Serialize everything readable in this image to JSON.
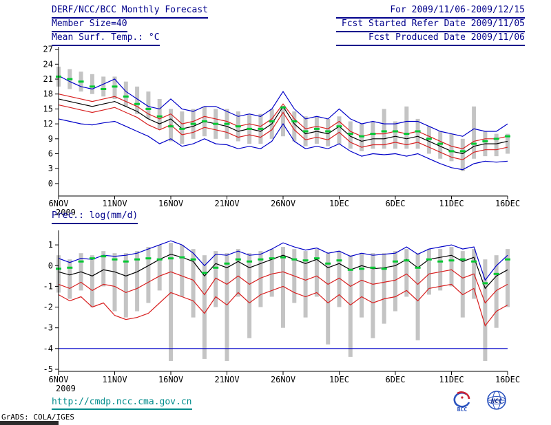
{
  "header": {
    "title": "DERF/NCC/BCC Monthly Forecast",
    "date_range": "For 2009/11/06-2009/12/15",
    "member_size": "Member Size=40",
    "fcst_refer": "Fcst Started Refer Date 2009/11/05",
    "fcst_produced": "Fcst Produced Date 2009/11/06"
  },
  "footer": {
    "url": "http://cmdp.ncc.cma.gov.cn",
    "grads_credit": "GrADS: COLA/IGES",
    "logos": [
      "bcc-logo",
      "ncc-logo"
    ]
  },
  "colors": {
    "header_text": "#00008b",
    "url_text": "#008b8b",
    "axis_text": "#000000",
    "bar_gray": "#c4c4c4",
    "line_blue": "#0000c8",
    "line_red": "#d82020",
    "line_black": "#000000",
    "dash_green": "#00c832"
  },
  "chart_data": [
    {
      "type": "line",
      "name": "surface-temperature-forecast",
      "title": "Mean Surf. Temp.: °C",
      "x_tick_labels": [
        "6NOV",
        "11NOV",
        "16NOV",
        "21NOV",
        "26NOV",
        "1DEC",
        "6DEC",
        "11DEC",
        "16DEC"
      ],
      "x_tick_step": 5,
      "x_year_label": "2009",
      "n_points": 41,
      "ylim": [
        -2.5,
        27.5
      ],
      "yticks": [
        0,
        3,
        6,
        9,
        12,
        15,
        18,
        21,
        24,
        27
      ],
      "series": [
        {
          "name": "member-spread-bar",
          "type": "bar",
          "color": "#c4c4c4",
          "low": [
            19.5,
            19.0,
            18.5,
            18.0,
            17.5,
            17.0,
            15.5,
            14.0,
            13.0,
            11.0,
            8.5,
            8.0,
            9.0,
            9.5,
            9.0,
            9.0,
            8.5,
            8.0,
            8.0,
            9.0,
            9.5,
            8.5,
            7.5,
            8.0,
            7.5,
            8.0,
            7.0,
            6.5,
            7.0,
            7.0,
            7.0,
            7.0,
            7.0,
            6.0,
            5.0,
            4.5,
            2.5,
            5.0,
            5.5,
            5.5,
            6.0
          ],
          "high": [
            23.5,
            23.0,
            22.5,
            22.0,
            21.5,
            21.5,
            20.5,
            19.5,
            18.5,
            17.0,
            15.0,
            14.5,
            15.0,
            15.5,
            15.0,
            15.0,
            14.5,
            14.0,
            14.0,
            15.0,
            15.5,
            14.5,
            13.5,
            13.5,
            13.0,
            13.5,
            12.5,
            12.0,
            12.5,
            15.0,
            12.5,
            15.5,
            13.0,
            11.5,
            10.5,
            10.0,
            9.0,
            15.5,
            10.5,
            10.0,
            10.0
          ]
        },
        {
          "name": "ensemble-max",
          "type": "line",
          "color": "#0000c8",
          "values": [
            21.7,
            20.5,
            19.5,
            19.0,
            20.0,
            21.0,
            18.5,
            17.0,
            15.5,
            15.0,
            17.0,
            15.0,
            14.5,
            15.5,
            15.5,
            14.5,
            13.5,
            14.0,
            13.5,
            15.0,
            18.5,
            15.0,
            13.0,
            13.5,
            13.0,
            15.0,
            13.0,
            12.0,
            12.5,
            12.0,
            12.0,
            12.5,
            12.5,
            11.5,
            10.5,
            10.0,
            9.5,
            11.0,
            10.5,
            10.5,
            12.0
          ]
        },
        {
          "name": "upper-quartile",
          "type": "line",
          "color": "#d82020",
          "values": [
            18.0,
            17.5,
            17.0,
            16.5,
            17.0,
            17.5,
            16.5,
            15.5,
            14.0,
            13.0,
            14.0,
            12.0,
            12.5,
            13.5,
            13.0,
            12.5,
            11.5,
            12.0,
            11.5,
            13.0,
            16.0,
            13.0,
            11.0,
            11.5,
            11.0,
            12.5,
            10.5,
            9.5,
            10.0,
            10.0,
            10.5,
            10.0,
            10.5,
            9.5,
            8.5,
            7.5,
            7.0,
            8.5,
            9.0,
            9.0,
            9.5
          ]
        },
        {
          "name": "lower-quartile",
          "type": "line",
          "color": "#d82020",
          "values": [
            15.8,
            15.3,
            14.8,
            14.3,
            14.8,
            15.3,
            14.3,
            13.3,
            11.8,
            10.8,
            11.8,
            9.8,
            10.3,
            11.3,
            10.8,
            10.3,
            9.3,
            9.8,
            9.3,
            10.8,
            14.3,
            10.8,
            8.8,
            9.3,
            8.8,
            10.3,
            8.3,
            7.3,
            7.8,
            7.8,
            8.3,
            7.8,
            8.3,
            7.3,
            6.3,
            5.3,
            4.8,
            6.3,
            6.8,
            6.8,
            7.3
          ]
        },
        {
          "name": "ensemble-min",
          "type": "line",
          "color": "#0000c8",
          "values": [
            13.0,
            12.5,
            12.0,
            11.8,
            12.2,
            12.5,
            11.5,
            10.5,
            9.5,
            8.0,
            9.0,
            7.5,
            8.0,
            9.0,
            8.0,
            7.8,
            7.0,
            7.5,
            7.0,
            8.5,
            12.0,
            8.5,
            7.0,
            7.5,
            7.0,
            8.0,
            6.5,
            5.5,
            6.0,
            5.8,
            6.0,
            5.5,
            6.0,
            5.0,
            4.0,
            3.2,
            2.8,
            4.0,
            4.5,
            4.3,
            4.5
          ]
        },
        {
          "name": "ensemble-mean",
          "type": "line",
          "color": "#000000",
          "values": [
            17.0,
            16.5,
            16.0,
            15.5,
            16.0,
            16.5,
            15.5,
            14.5,
            13.0,
            12.0,
            13.0,
            11.0,
            11.5,
            12.5,
            12.0,
            11.5,
            10.5,
            11.0,
            10.5,
            12.0,
            15.5,
            12.0,
            10.0,
            10.5,
            10.0,
            11.5,
            9.5,
            8.5,
            9.0,
            9.0,
            9.5,
            9.0,
            9.5,
            8.5,
            7.5,
            6.5,
            6.0,
            7.5,
            8.0,
            8.0,
            8.5
          ]
        },
        {
          "name": "climatology-dash",
          "type": "dash",
          "color": "#00c832",
          "values": [
            21.5,
            21.0,
            20.5,
            19.5,
            19.0,
            19.5,
            17.5,
            16.0,
            15.0,
            13.5,
            11.5,
            11.0,
            12.0,
            12.5,
            12.0,
            12.0,
            11.5,
            11.0,
            11.0,
            12.5,
            15.3,
            12.5,
            10.5,
            11.0,
            10.5,
            11.5,
            10.0,
            9.5,
            10.0,
            10.5,
            10.5,
            10.0,
            10.5,
            9.0,
            8.0,
            6.5,
            6.5,
            8.0,
            8.5,
            9.0,
            9.5
          ]
        }
      ]
    },
    {
      "type": "line",
      "name": "precipitation-forecast",
      "title": "Prec.: log(mm/d)",
      "x_tick_labels": [
        "6NOV",
        "11NOV",
        "16NOV",
        "21NOV",
        "26NOV",
        "1DEC",
        "6DEC",
        "11DEC",
        "16DEC"
      ],
      "x_tick_step": 5,
      "x_year_label": "2009",
      "n_points": 41,
      "ylim": [
        -5.1,
        1.7
      ],
      "yticks": [
        1,
        0,
        -1,
        -2,
        -3,
        -4,
        -5
      ],
      "series": [
        {
          "name": "member-spread-bar",
          "type": "bar",
          "color": "#c4c4c4",
          "low": [
            -1.3,
            -1.6,
            -1.2,
            -2.0,
            -1.0,
            -2.2,
            -2.5,
            -2.2,
            -1.8,
            -1.2,
            -4.6,
            -1.5,
            -2.5,
            -4.5,
            -2.0,
            -4.6,
            -1.5,
            -3.5,
            -2.0,
            -1.5,
            -3.0,
            -1.8,
            -2.5,
            -1.5,
            -3.8,
            -2.0,
            -4.4,
            -2.5,
            -3.5,
            -2.8,
            -2.2,
            -1.5,
            -3.6,
            -1.4,
            -1.2,
            -1.0,
            -2.5,
            -1.6,
            -4.6,
            -3.0,
            -2.0
          ],
          "high": [
            0.5,
            0.3,
            0.6,
            0.5,
            0.7,
            0.6,
            0.6,
            0.7,
            0.9,
            1.0,
            1.1,
            1.0,
            0.8,
            0.5,
            0.7,
            0.6,
            0.8,
            0.6,
            0.7,
            0.8,
            0.9,
            0.8,
            0.7,
            0.8,
            0.6,
            0.7,
            0.5,
            0.6,
            0.6,
            0.6,
            0.7,
            0.8,
            0.6,
            0.8,
            0.8,
            0.9,
            0.7,
            0.8,
            0.3,
            0.5,
            0.8
          ]
        },
        {
          "name": "ensemble-max",
          "type": "line",
          "color": "#0000c8",
          "values": [
            0.35,
            0.15,
            0.35,
            0.3,
            0.5,
            0.45,
            0.5,
            0.6,
            0.8,
            1.0,
            1.2,
            1.0,
            0.6,
            0.0,
            0.55,
            0.5,
            0.7,
            0.5,
            0.55,
            0.8,
            1.1,
            0.9,
            0.75,
            0.85,
            0.6,
            0.7,
            0.45,
            0.6,
            0.5,
            0.55,
            0.6,
            0.9,
            0.55,
            0.8,
            0.9,
            1.0,
            0.8,
            0.9,
            -0.7,
            0.0,
            0.5
          ]
        },
        {
          "name": "upper-quartile",
          "type": "line",
          "color": "#d82020",
          "values": [
            -0.9,
            -1.1,
            -0.8,
            -1.2,
            -0.9,
            -1.0,
            -1.3,
            -1.1,
            -0.8,
            -0.5,
            -0.3,
            -0.5,
            -0.7,
            -1.4,
            -0.6,
            -0.9,
            -0.5,
            -0.9,
            -0.6,
            -0.4,
            -0.3,
            -0.5,
            -0.7,
            -0.5,
            -0.9,
            -0.6,
            -1.0,
            -0.7,
            -0.9,
            -0.8,
            -0.7,
            -0.4,
            -0.9,
            -0.4,
            -0.3,
            -0.2,
            -0.6,
            -0.4,
            -1.8,
            -1.2,
            -0.9
          ]
        },
        {
          "name": "lower-quartile",
          "type": "line",
          "color": "#d82020",
          "values": [
            -1.4,
            -1.7,
            -1.5,
            -2.0,
            -1.8,
            -2.4,
            -2.6,
            -2.5,
            -2.3,
            -1.8,
            -1.3,
            -1.5,
            -1.7,
            -2.3,
            -1.5,
            -1.9,
            -1.3,
            -1.8,
            -1.4,
            -1.2,
            -1.0,
            -1.3,
            -1.5,
            -1.3,
            -1.8,
            -1.4,
            -1.9,
            -1.5,
            -1.8,
            -1.6,
            -1.5,
            -1.2,
            -1.7,
            -1.1,
            -1.0,
            -0.9,
            -1.4,
            -1.1,
            -2.9,
            -2.2,
            -1.9
          ]
        },
        {
          "name": "ensemble-min-dry-floor",
          "type": "line",
          "color": "#0000c8",
          "constant": -4
        },
        {
          "name": "ensemble-median",
          "type": "line",
          "color": "#000000",
          "values": [
            -0.3,
            -0.45,
            -0.3,
            -0.5,
            -0.2,
            -0.3,
            -0.5,
            -0.3,
            0.0,
            0.3,
            0.55,
            0.4,
            0.2,
            -0.5,
            0.1,
            -0.1,
            0.2,
            -0.1,
            0.1,
            0.3,
            0.5,
            0.3,
            0.1,
            0.3,
            -0.1,
            0.1,
            -0.2,
            0.0,
            -0.15,
            -0.1,
            0.0,
            0.3,
            -0.1,
            0.3,
            0.4,
            0.5,
            0.2,
            0.4,
            -1.1,
            -0.5,
            -0.2
          ]
        },
        {
          "name": "climatology-dash",
          "type": "dash",
          "color": "#00c832",
          "values": [
            -0.15,
            -0.1,
            0.2,
            0.35,
            0.45,
            0.3,
            0.2,
            0.3,
            0.35,
            0.3,
            0.35,
            0.4,
            0.3,
            -0.35,
            -0.1,
            0.1,
            0.3,
            0.2,
            0.3,
            0.35,
            0.4,
            0.3,
            0.25,
            0.35,
            0.1,
            0.25,
            -0.2,
            -0.15,
            -0.1,
            -0.15,
            0.2,
            0.25,
            -0.1,
            0.3,
            0.2,
            0.25,
            0.3,
            0.2,
            -0.85,
            -0.4,
            0.3
          ]
        }
      ]
    }
  ]
}
